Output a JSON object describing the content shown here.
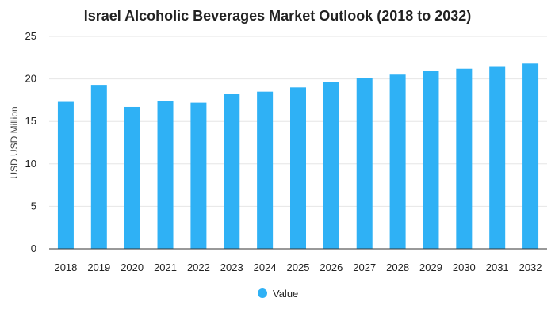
{
  "chart_data": {
    "type": "bar",
    "title": "Israel Alcoholic Beverages Market Outlook (2018 to 2032)",
    "ylabel": "USD USD Million",
    "xlabel": "",
    "ylim": [
      0,
      25
    ],
    "yticks": [
      0,
      5,
      10,
      15,
      20,
      25
    ],
    "grid": true,
    "legend_position": "bottom",
    "categories": [
      "2018",
      "2019",
      "2020",
      "2021",
      "2022",
      "2023",
      "2024",
      "2025",
      "2026",
      "2027",
      "2028",
      "2029",
      "2030",
      "2031",
      "2032"
    ],
    "series": [
      {
        "name": "Value",
        "color": "#2fb1f5",
        "values": [
          17.3,
          19.3,
          16.7,
          17.4,
          17.2,
          18.2,
          18.5,
          19.0,
          19.6,
          20.1,
          20.5,
          20.9,
          21.2,
          21.5,
          21.8
        ]
      }
    ]
  }
}
